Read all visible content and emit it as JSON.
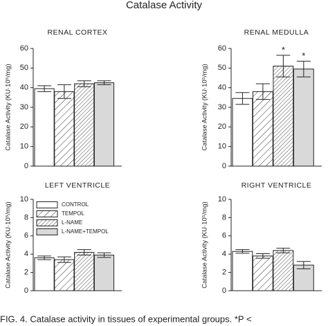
{
  "title": "Catalase Activity",
  "caption": "FIG. 4. Catalase activity in tissues of experimental groups. *P <",
  "legend": [
    "CONTROL",
    "TEMPOL",
    "L-NAME",
    "L-NAME+TEMPOL"
  ],
  "fills": [
    "#ffffff",
    "hatch-sparse",
    "hatch-dense",
    "#d9d9d9"
  ],
  "chart_data": [
    {
      "type": "bar",
      "title": "RENAL CORTEX",
      "y_label": "Catalase Activity (KU·10⁵/mg)",
      "values": [
        39.5,
        38,
        42,
        42.5
      ],
      "errors": [
        1.5,
        3.5,
        1.5,
        1
      ],
      "ylim": [
        0,
        60
      ],
      "yticks": [
        0,
        10,
        20,
        30,
        40,
        50,
        60
      ]
    },
    {
      "type": "bar",
      "title": "RENAL MEDULLA",
      "y_label": "Catalase Activity (KU·10⁵/mg)",
      "values": [
        34.5,
        38,
        51,
        49.5
      ],
      "errors": [
        3,
        4,
        5.5,
        4
      ],
      "ylim": [
        0,
        60
      ],
      "yticks": [
        0,
        10,
        20,
        30,
        40,
        50,
        60
      ],
      "annotations": [
        {
          "bar": 2,
          "text": "*"
        },
        {
          "bar": 3,
          "text": "*"
        }
      ]
    },
    {
      "type": "bar",
      "title": "LEFT VENTRICLE",
      "y_label": "Catalase Activity (KU·10⁵/mg)",
      "values": [
        3.6,
        3.4,
        4.2,
        3.9
      ],
      "errors": [
        0.2,
        0.3,
        0.3,
        0.25
      ],
      "ylim": [
        0,
        10
      ],
      "yticks": [
        0,
        2,
        4,
        6,
        8,
        10
      ],
      "show_legend": true
    },
    {
      "type": "bar",
      "title": "RIGHT VENTRICLE",
      "y_label": "Catalase Activity (KU·10⁵/mg)",
      "values": [
        4.3,
        3.8,
        4.4,
        2.8
      ],
      "errors": [
        0.2,
        0.25,
        0.25,
        0.4
      ],
      "ylim": [
        0,
        10
      ],
      "yticks": [
        0,
        2,
        4,
        6,
        8,
        10
      ]
    }
  ]
}
